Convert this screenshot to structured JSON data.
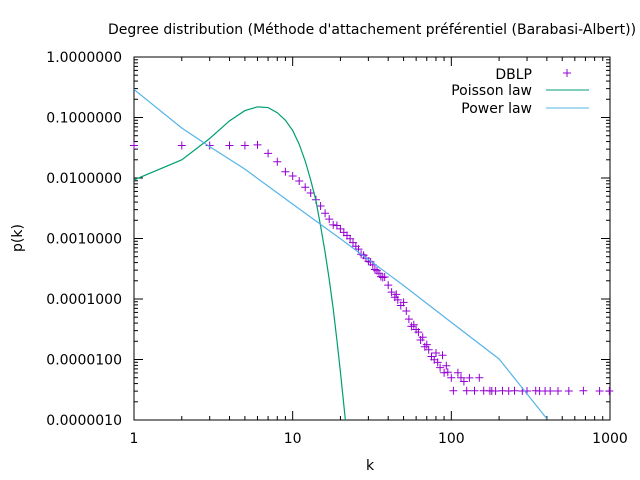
{
  "chart_data": {
    "type": "scatter",
    "title": "Degree distribution (Méthode d'attachement préférentiel (Barabasi-Albert))",
    "xlabel": "k",
    "ylabel": "p(k)",
    "xscale": "log",
    "yscale": "log",
    "xlim": [
      1,
      1000
    ],
    "ylim": [
      1e-06,
      1.0
    ],
    "x_ticks": [
      1,
      10,
      100,
      1000
    ],
    "x_tick_labels": [
      "1",
      "10",
      "100",
      "1000"
    ],
    "y_ticks": [
      1.0,
      0.1,
      0.01,
      0.001,
      0.0001,
      1e-05,
      1e-06
    ],
    "y_tick_labels": [
      "1.0000000",
      "0.1000000",
      "0.0100000",
      "0.0010000",
      "0.0001000",
      "0.0000100",
      "0.0000010"
    ],
    "legend_position": "top-right",
    "grid": false,
    "series": [
      {
        "name": "DBLP",
        "kind": "points",
        "marker": "plus",
        "color": "#9400d3",
        "points": [
          [
            1,
            0.0345
          ],
          [
            2,
            0.0345
          ],
          [
            3,
            0.0345
          ],
          [
            4,
            0.0345
          ],
          [
            5,
            0.0345
          ],
          [
            6,
            0.0353
          ],
          [
            7,
            0.0255
          ],
          [
            8,
            0.0186
          ],
          [
            9,
            0.0127
          ],
          [
            10,
            0.0108
          ],
          [
            11,
            0.00892
          ],
          [
            12,
            0.00703
          ],
          [
            13,
            0.00566
          ],
          [
            14,
            0.00437
          ],
          [
            15,
            0.00345
          ],
          [
            16,
            0.00261
          ],
          [
            17,
            0.00209
          ],
          [
            18,
            0.00168
          ],
          [
            19,
            0.00164
          ],
          [
            20,
            0.00144
          ],
          [
            21,
            0.00126
          ],
          [
            22,
            0.00112
          ],
          [
            23,
            0.000987
          ],
          [
            24,
            0.000856
          ],
          [
            25,
            0.000742
          ],
          [
            26,
            0.000668
          ],
          [
            27,
            0.000548
          ],
          [
            28,
            0.00053
          ],
          [
            29,
            0.000475
          ],
          [
            30,
            0.00042
          ],
          [
            31,
            0.000409
          ],
          [
            32,
            0.000366
          ],
          [
            33,
            0.000307
          ],
          [
            34,
            0.000293
          ],
          [
            35,
            0.000266
          ],
          [
            36,
            0.000235
          ],
          [
            37,
            0.000227
          ],
          [
            38,
            0.000231
          ],
          [
            40,
            0.00017
          ],
          [
            42,
            0.00013
          ],
          [
            44,
            0.000107
          ],
          [
            45,
            0.000119
          ],
          [
            46,
            9.66e-05
          ],
          [
            48,
            7.81e-05
          ],
          [
            50,
            8.77e-05
          ],
          [
            52,
            6.33e-05
          ],
          [
            54,
            4.66e-05
          ],
          [
            56,
            3.52e-05
          ],
          [
            58,
            3.75e-05
          ],
          [
            60,
            3.13e-05
          ],
          [
            62,
            2.84e-05
          ],
          [
            64,
            2.1e-05
          ],
          [
            66,
            2.33e-05
          ],
          [
            68,
            1.62e-05
          ],
          [
            70,
            1.76e-05
          ],
          [
            72,
            1.45e-05
          ],
          [
            75,
            1.12e-05
          ],
          [
            78,
            9.93e-06
          ],
          [
            80,
            1.28e-05
          ],
          [
            82,
            8.95e-06
          ],
          [
            85,
            7.35e-06
          ],
          [
            88,
            1.18e-05
          ],
          [
            90,
            6.03e-06
          ],
          [
            93,
            7.88e-06
          ],
          [
            95,
            6.15e-06
          ],
          [
            100,
            4.98e-06
          ],
          [
            103,
            3.05e-06
          ],
          [
            110,
            6.05e-06
          ],
          [
            115,
            4.98e-06
          ],
          [
            120,
            4.33e-06
          ],
          [
            125,
            3.04e-06
          ],
          [
            130,
            4.97e-06
          ],
          [
            140,
            3.05e-06
          ],
          [
            150,
            4.98e-06
          ],
          [
            160,
            3.05e-06
          ],
          [
            175,
            3.05e-06
          ],
          [
            180,
            3.02e-06
          ],
          [
            190,
            3.02e-06
          ],
          [
            210,
            3.05e-06
          ],
          [
            230,
            3.02e-06
          ],
          [
            250,
            3.05e-06
          ],
          [
            280,
            3.02e-06
          ],
          [
            300,
            3.02e-06
          ],
          [
            340,
            3.05e-06
          ],
          [
            360,
            3.02e-06
          ],
          [
            390,
            3.02e-06
          ],
          [
            420,
            3.02e-06
          ],
          [
            470,
            3.02e-06
          ],
          [
            550,
            3.02e-06
          ],
          [
            680,
            3.05e-06
          ],
          [
            860,
            3.02e-06
          ],
          [
            990,
            3.02e-06
          ]
        ]
      },
      {
        "name": "Poisson law",
        "kind": "line",
        "color": "#009e73",
        "points": [
          [
            1,
            0.0093
          ],
          [
            2,
            0.02
          ],
          [
            3,
            0.045
          ],
          [
            4,
            0.088
          ],
          [
            5,
            0.13
          ],
          [
            6,
            0.15
          ],
          [
            7,
            0.146
          ],
          [
            8,
            0.12
          ],
          [
            9,
            0.09
          ],
          [
            10,
            0.061
          ],
          [
            11,
            0.036
          ],
          [
            12,
            0.019
          ],
          [
            13,
            0.0092
          ],
          [
            14,
            0.0043
          ],
          [
            15,
            0.0016
          ],
          [
            16,
            0.0006
          ],
          [
            17,
            0.00021
          ],
          [
            18,
            7e-05
          ],
          [
            19,
            2.1e-05
          ],
          [
            20,
            6.2e-06
          ],
          [
            21,
            1.8e-06
          ],
          [
            22,
            5.5e-07
          ]
        ]
      },
      {
        "name": "Power law",
        "kind": "line",
        "color": "#56b4e9",
        "points": [
          [
            1,
            0.29
          ],
          [
            2,
            0.067
          ],
          [
            3,
            0.033
          ],
          [
            5,
            0.014
          ],
          [
            10,
            0.0037
          ],
          [
            20,
            0.00099
          ],
          [
            50,
            0.000167
          ],
          [
            100,
            4.11e-05
          ],
          [
            200,
            1.02e-05
          ],
          [
            400,
            1.05e-06
          ]
        ]
      }
    ]
  }
}
